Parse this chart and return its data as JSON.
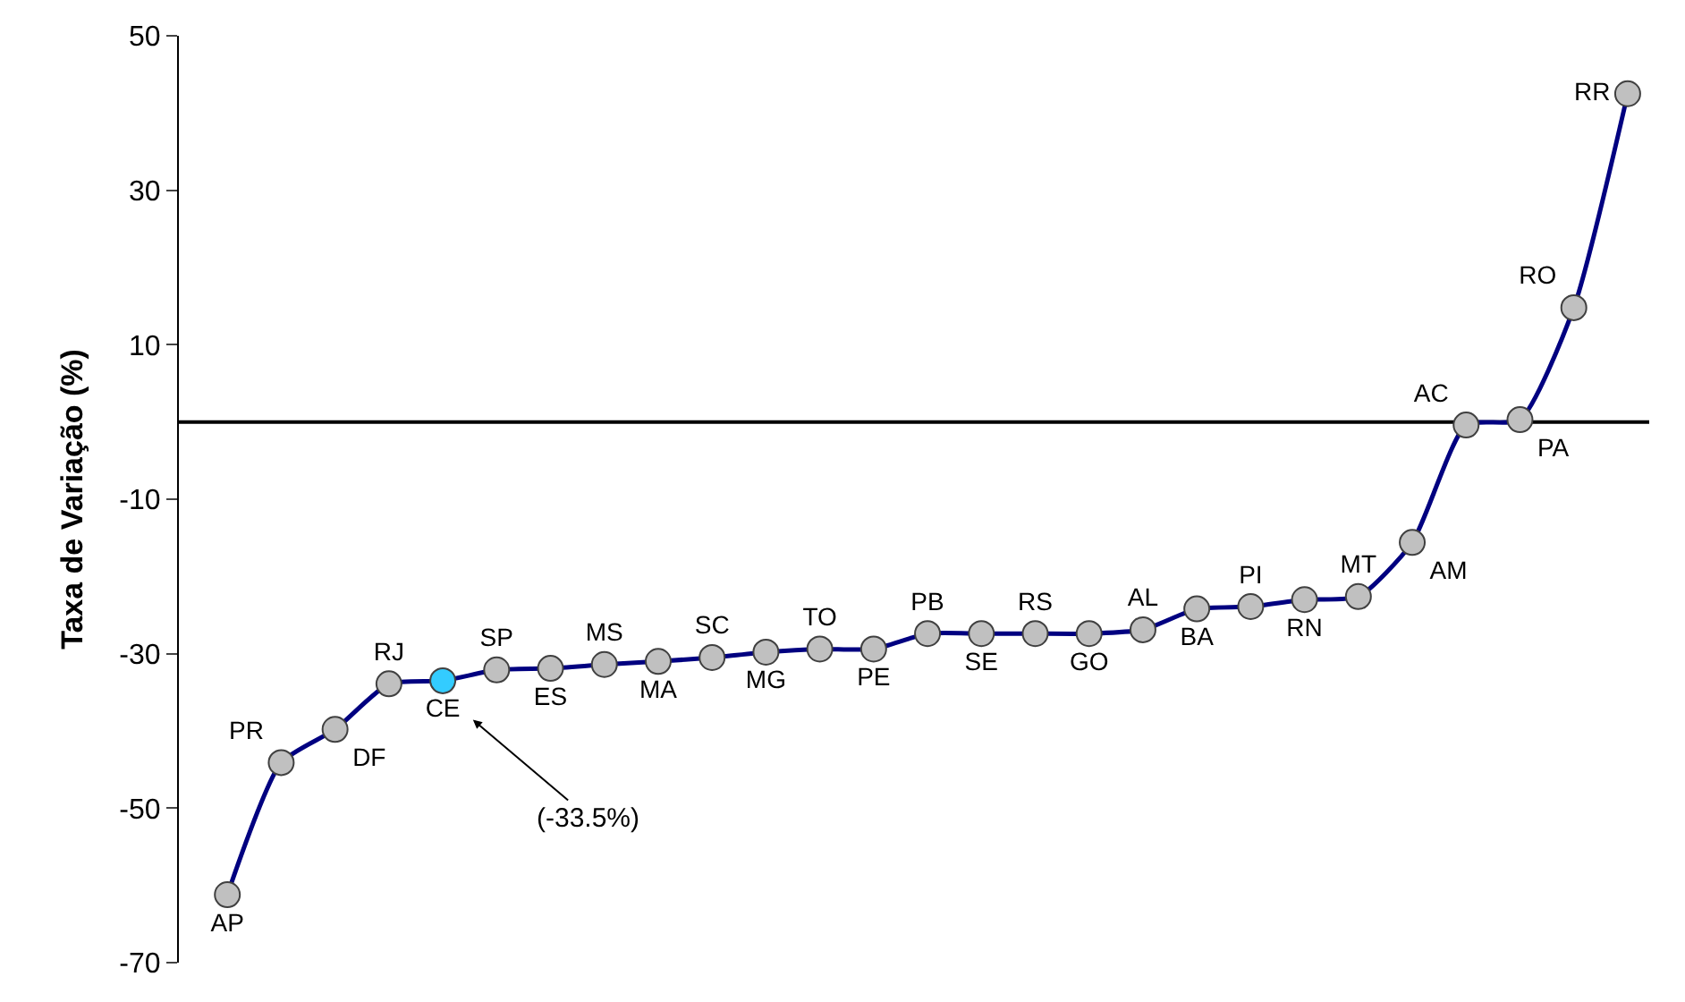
{
  "chart_data": {
    "type": "line",
    "ylabel": "Taxa de Variação (%)",
    "categories": [
      null,
      null,
      null,
      null,
      null,
      null,
      null,
      null,
      null,
      null,
      null,
      null,
      null,
      null,
      null,
      null,
      null,
      null,
      null,
      null,
      null,
      null,
      null,
      null,
      null,
      null,
      null
    ],
    "series": [
      {
        "color": "#000080",
        "values": [
          -61.2,
          -44.1,
          -39.8,
          -33.9,
          -33.5,
          -32.1,
          -31.9,
          -31.4,
          -31.0,
          -30.5,
          -29.8,
          -29.4,
          -29.4,
          -27.4,
          -27.4,
          -27.4,
          -27.4,
          -26.9,
          -24.2,
          -23.9,
          -23.0,
          -22.6,
          -15.6,
          -0.4,
          0.3,
          14.8,
          42.5
        ],
        "value_labels": [
          "AP",
          "PR",
          "DF",
          "RJ",
          "CE",
          "SP",
          "ES",
          "MS",
          "MA",
          "SC",
          "MG",
          "TO",
          "PE",
          "PB",
          "SE",
          "RS",
          "GO",
          "AL",
          "BA",
          "PI",
          "RN",
          "MT",
          "AM",
          "AC",
          "PA",
          "RO",
          "RR"
        ],
        "colors": [
          "#c0c0c0",
          "#c0c0c0",
          "#c0c0c0",
          "#c0c0c0",
          "#33ccff",
          "#c0c0c0",
          "#c0c0c0",
          "#c0c0c0",
          "#c0c0c0",
          "#c0c0c0",
          "#c0c0c0",
          "#c0c0c0",
          "#c0c0c0",
          "#c0c0c0",
          "#c0c0c0",
          "#c0c0c0",
          "#c0c0c0",
          "#c0c0c0",
          "#c0c0c0",
          "#c0c0c0",
          "#c0c0c0",
          "#c0c0c0",
          "#c0c0c0",
          "#c0c0c0",
          "#c0c0c0",
          "#c0c0c0",
          "#c0c0c0"
        ]
      }
    ],
    "ylim": [
      -70,
      50
    ],
    "yticks": [
      -70,
      -50,
      -30,
      -10,
      10,
      30,
      50
    ],
    "ref_lines": [
      {
        "axis": "y",
        "value": 0,
        "color": "#000000"
      }
    ],
    "annotations": [
      "(-33.5%)"
    ],
    "marker": "circle",
    "line_style": "solid",
    "legend": false,
    "tick_labels": "y"
  }
}
